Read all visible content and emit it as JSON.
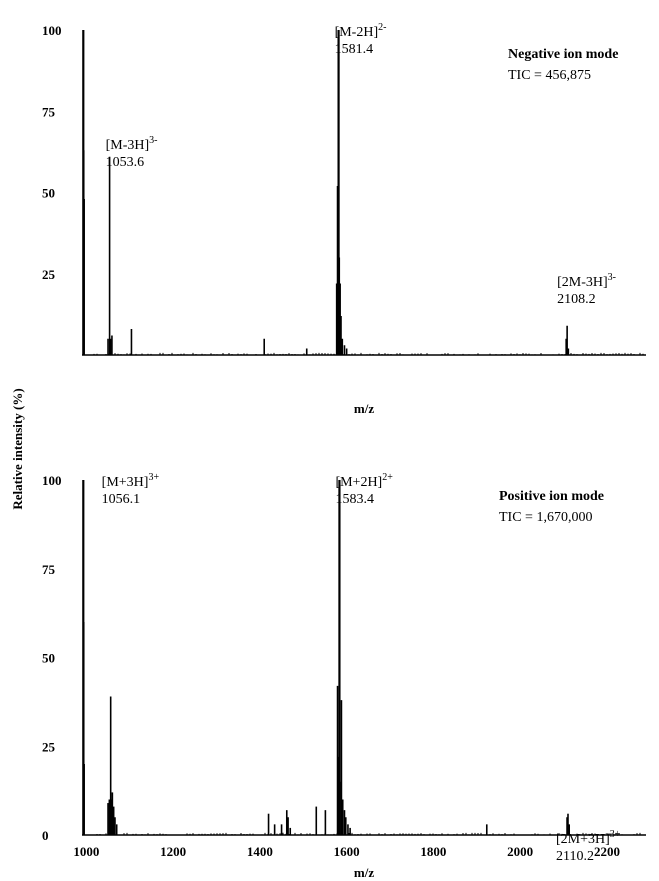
{
  "shared_ylabel": "Relative intensity (%)",
  "chart_data": [
    {
      "type": "bar",
      "panel": "negative",
      "mode_label": "Negative ion mode",
      "tic_text": "TIC = 456,875",
      "xlabel": "m/z",
      "xlim": [
        990,
        2290
      ],
      "ylim": [
        0,
        100
      ],
      "y_ticks": [
        "100",
        "75",
        "50",
        "25"
      ],
      "x_ticks": [],
      "peaks": [
        {
          "x": 993,
          "y": 100
        },
        {
          "x": 994,
          "y": 63
        },
        {
          "x": 995,
          "y": 48
        },
        {
          "x": 1050,
          "y": 5
        },
        {
          "x": 1053.6,
          "y": 61
        },
        {
          "x": 1056,
          "y": 5
        },
        {
          "x": 1059,
          "y": 6
        },
        {
          "x": 1104,
          "y": 8
        },
        {
          "x": 1410,
          "y": 5
        },
        {
          "x": 1508,
          "y": 2
        },
        {
          "x": 1577,
          "y": 22
        },
        {
          "x": 1579,
          "y": 52
        },
        {
          "x": 1581.4,
          "y": 100
        },
        {
          "x": 1583,
          "y": 30
        },
        {
          "x": 1585,
          "y": 22
        },
        {
          "x": 1587,
          "y": 12
        },
        {
          "x": 1590,
          "y": 5
        },
        {
          "x": 1595,
          "y": 3
        },
        {
          "x": 1600,
          "y": 2
        },
        {
          "x": 2106,
          "y": 5
        },
        {
          "x": 2108.2,
          "y": 9
        },
        {
          "x": 2111,
          "y": 2
        }
      ],
      "annotations": [
        {
          "ion": "[M-3H]",
          "charge": "3-",
          "mz": "1053.6",
          "x": 1053.6
        },
        {
          "ion": "[M-2H]",
          "charge": "2-",
          "mz": "1581.4",
          "x": 1581.4
        },
        {
          "ion": "[2M-3H]",
          "charge": "3-",
          "mz": "2108.2",
          "x": 2108.2
        }
      ]
    },
    {
      "type": "bar",
      "panel": "positive",
      "mode_label": "Positive ion mode",
      "tic_text": "TIC = 1,670,000",
      "xlabel": "m/z",
      "xlim": [
        990,
        2290
      ],
      "ylim": [
        0,
        100
      ],
      "y_ticks": [
        "100",
        "75",
        "50",
        "25",
        "0"
      ],
      "x_ticks": [
        "1000",
        "1200",
        "1400",
        "1600",
        "1800",
        "2000",
        "2200"
      ],
      "peaks": [
        {
          "x": 993,
          "y": 100
        },
        {
          "x": 994,
          "y": 60
        },
        {
          "x": 995,
          "y": 20
        },
        {
          "x": 1050,
          "y": 9
        },
        {
          "x": 1053,
          "y": 10
        },
        {
          "x": 1056.1,
          "y": 39
        },
        {
          "x": 1058,
          "y": 10
        },
        {
          "x": 1060,
          "y": 12
        },
        {
          "x": 1063,
          "y": 8
        },
        {
          "x": 1066,
          "y": 5
        },
        {
          "x": 1070,
          "y": 3
        },
        {
          "x": 1420,
          "y": 6
        },
        {
          "x": 1434,
          "y": 3
        },
        {
          "x": 1450,
          "y": 3
        },
        {
          "x": 1462,
          "y": 7
        },
        {
          "x": 1465,
          "y": 5
        },
        {
          "x": 1470,
          "y": 2
        },
        {
          "x": 1530,
          "y": 8
        },
        {
          "x": 1551,
          "y": 7
        },
        {
          "x": 1579,
          "y": 42
        },
        {
          "x": 1581,
          "y": 22
        },
        {
          "x": 1583.4,
          "y": 100
        },
        {
          "x": 1585,
          "y": 15
        },
        {
          "x": 1588,
          "y": 38
        },
        {
          "x": 1591,
          "y": 10
        },
        {
          "x": 1595,
          "y": 7
        },
        {
          "x": 1598,
          "y": 5
        },
        {
          "x": 1603,
          "y": 3
        },
        {
          "x": 1608,
          "y": 2
        },
        {
          "x": 1923,
          "y": 3
        },
        {
          "x": 2108,
          "y": 5
        },
        {
          "x": 2110.2,
          "y": 6
        },
        {
          "x": 2113,
          "y": 3
        }
      ],
      "annotations": [
        {
          "ion": "[M+3H]",
          "charge": "3+",
          "mz": "1056.1",
          "x": 1056.1
        },
        {
          "ion": "[M+2H]",
          "charge": "2+",
          "mz": "1583.4",
          "x": 1583.4
        },
        {
          "ion": "[2M+3H]",
          "charge": "3+",
          "mz": "2110.2",
          "x": 2110.2
        }
      ]
    }
  ]
}
